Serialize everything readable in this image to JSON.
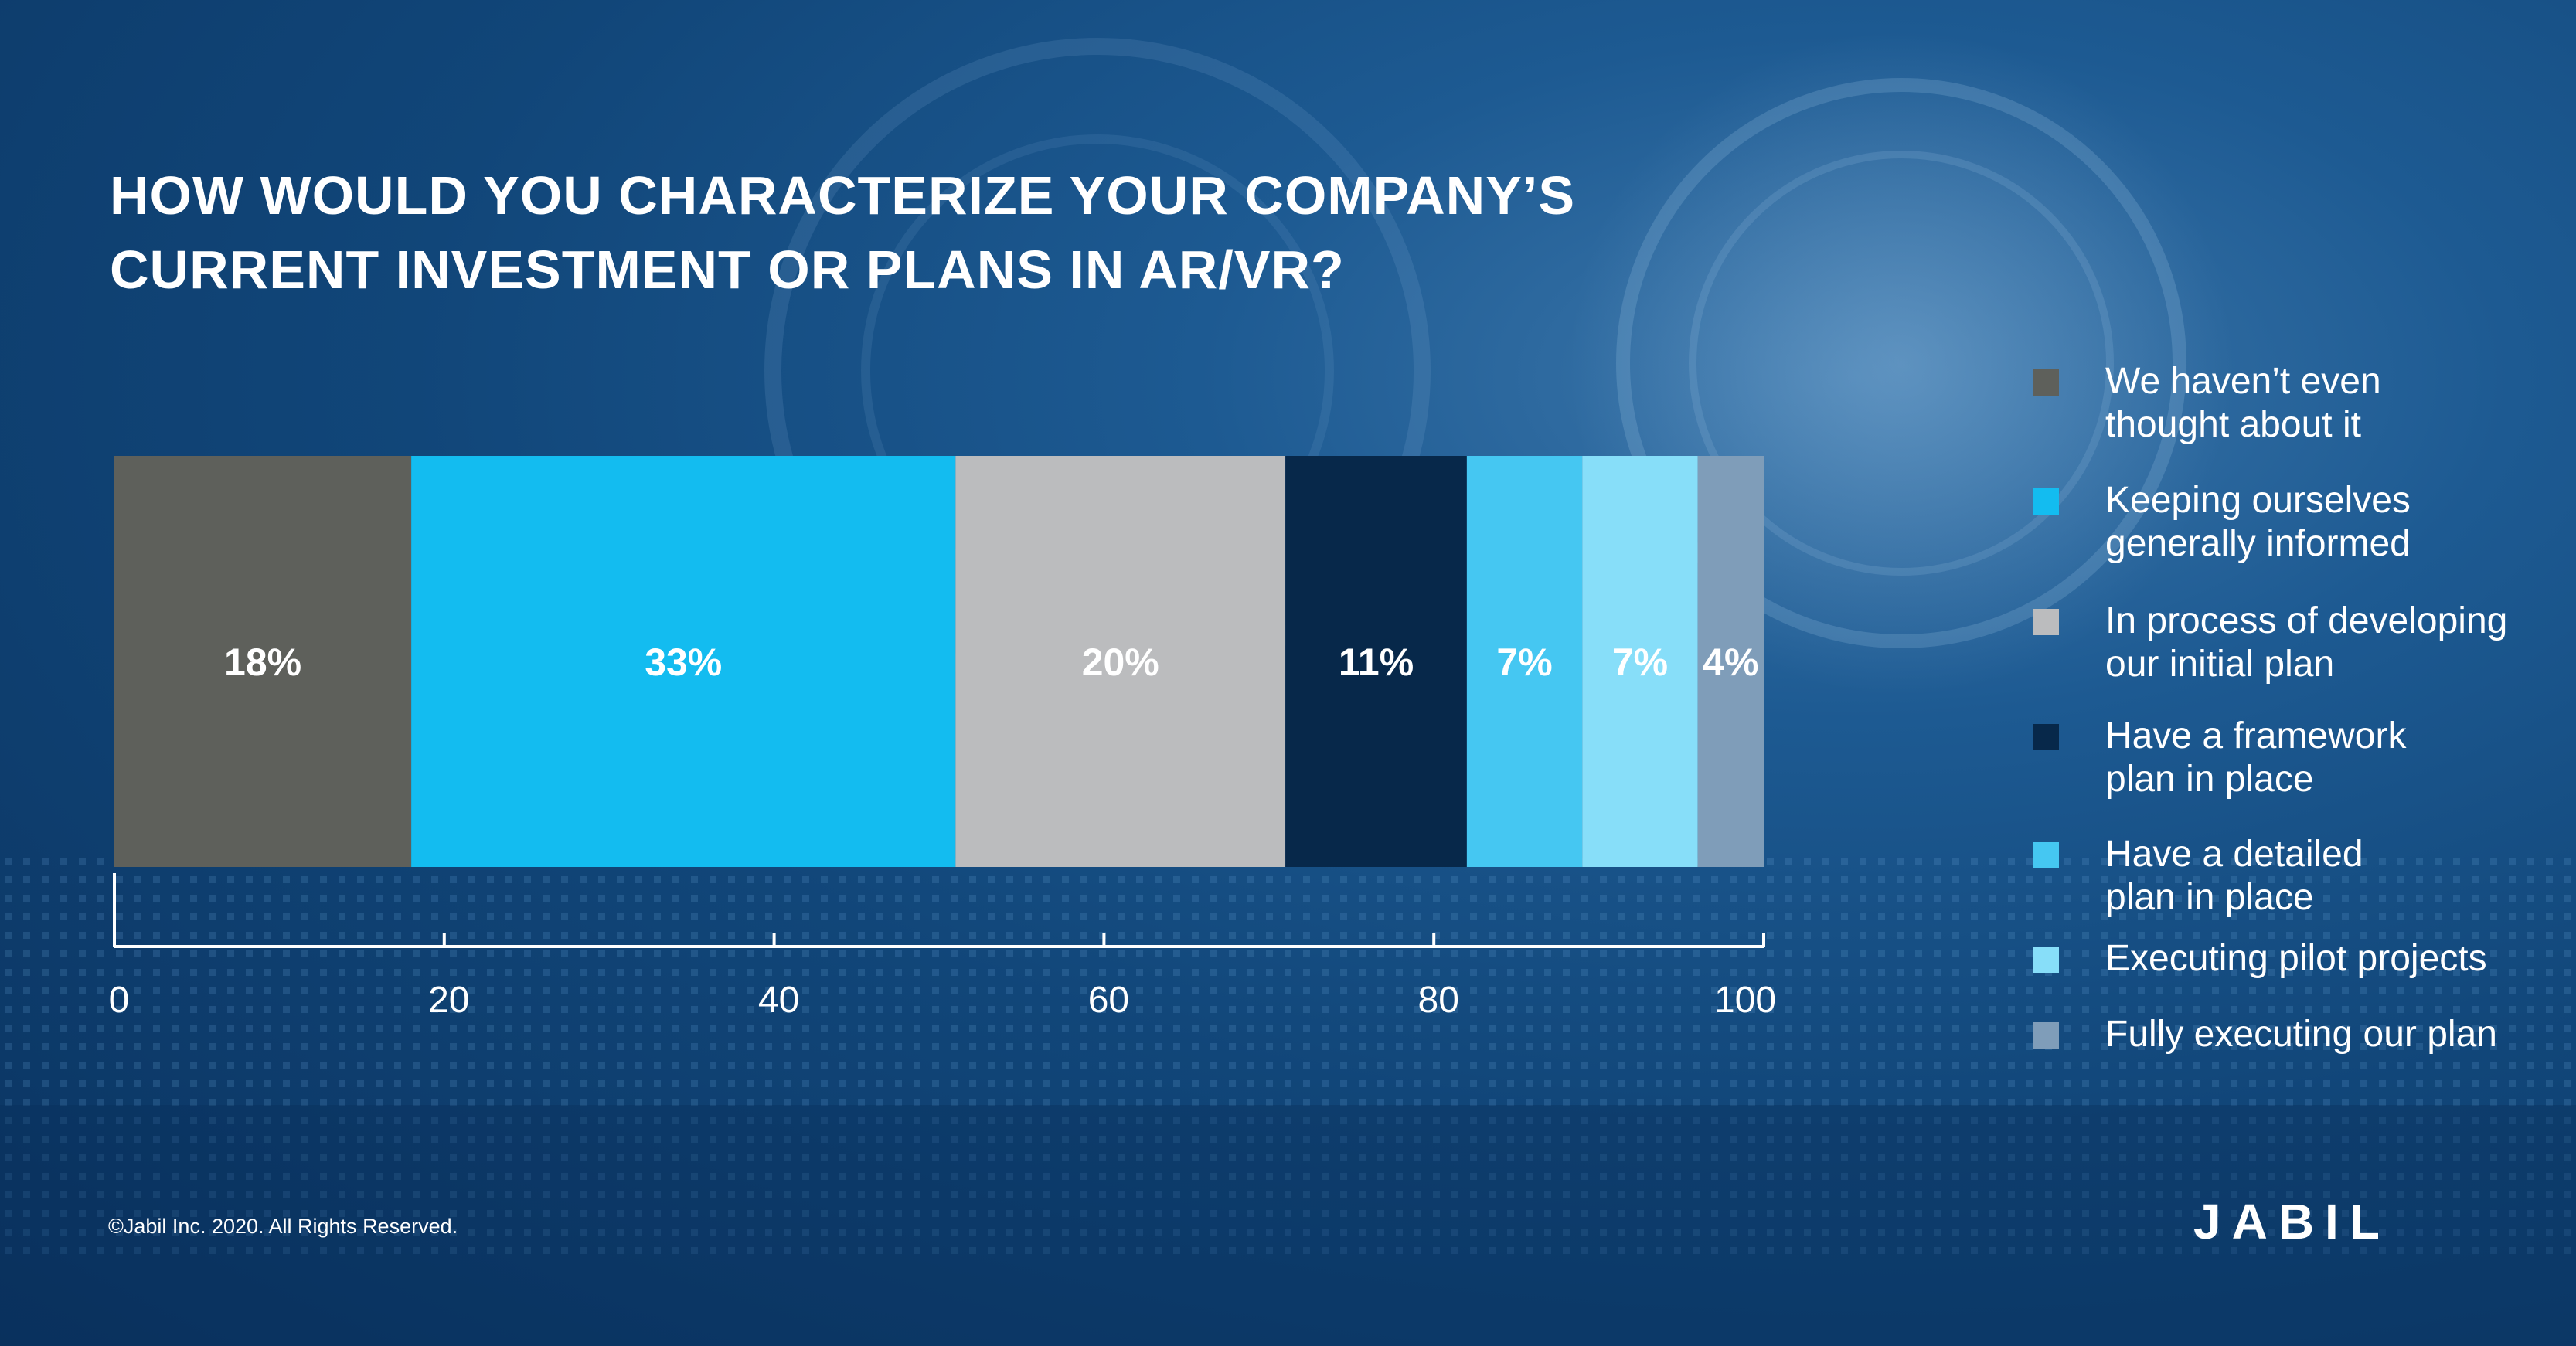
{
  "title": {
    "line1": "HOW WOULD YOU CHARACTERIZE YOUR COMPANY’S",
    "line2": "CURRENT INVESTMENT OR PLANS IN AR/VR?"
  },
  "chart_data": {
    "type": "bar",
    "orientation": "horizontal-stacked",
    "series": [
      {
        "name": "We haven’t even thought about it",
        "value": 18,
        "label": "18%",
        "color": "#5e605b",
        "label_color": "#ffffff"
      },
      {
        "name": "Keeping ourselves generally informed",
        "value": 33,
        "label": "33%",
        "color": "#13bcf0",
        "label_color": "#ffffff"
      },
      {
        "name": "In process of developing our initial plan",
        "value": 20,
        "label": "20%",
        "color": "#bbbcbe",
        "label_color": "#ffffff"
      },
      {
        "name": "Have a framework plan in place",
        "value": 11,
        "label": "11%",
        "color": "#07284a",
        "label_color": "#ffffff"
      },
      {
        "name": "Have a detailed plan in place",
        "value": 7,
        "label": "7%",
        "color": "#45c7f2",
        "label_color": "#ffffff"
      },
      {
        "name": "Executing pilot projects",
        "value": 7,
        "label": "7%",
        "color": "#87def9",
        "label_color": "#ffffff"
      },
      {
        "name": "Fully executing our plan",
        "value": 4,
        "label": "4%",
        "color": "#7f9db9",
        "label_color": "#ffffff"
      }
    ],
    "xlim": [
      0,
      100
    ],
    "xticks": [
      "0",
      "20",
      "40",
      "60",
      "80",
      "100"
    ],
    "grid": false,
    "legend_position": "right"
  },
  "legend": [
    {
      "lines": [
        "We haven’t even",
        "thought about it"
      ],
      "color": "#5e605b"
    },
    {
      "lines": [
        "Keeping ourselves",
        "generally informed"
      ],
      "color": "#13bcf0"
    },
    {
      "lines": [
        "In process of developing",
        "our initial plan"
      ],
      "color": "#bbbcbe"
    },
    {
      "lines": [
        "Have a framework",
        "plan in place"
      ],
      "color": "#07284a"
    },
    {
      "lines": [
        "Have a detailed",
        "plan in place"
      ],
      "color": "#45c7f2"
    },
    {
      "lines": [
        "Executing pilot projects"
      ],
      "color": "#87def9"
    },
    {
      "lines": [
        "Fully executing our plan"
      ],
      "color": "#7f9db9"
    }
  ],
  "footer": {
    "copyright": "©Jabil Inc. 2020. All Rights Reserved.",
    "logo_text": "JABIL"
  }
}
